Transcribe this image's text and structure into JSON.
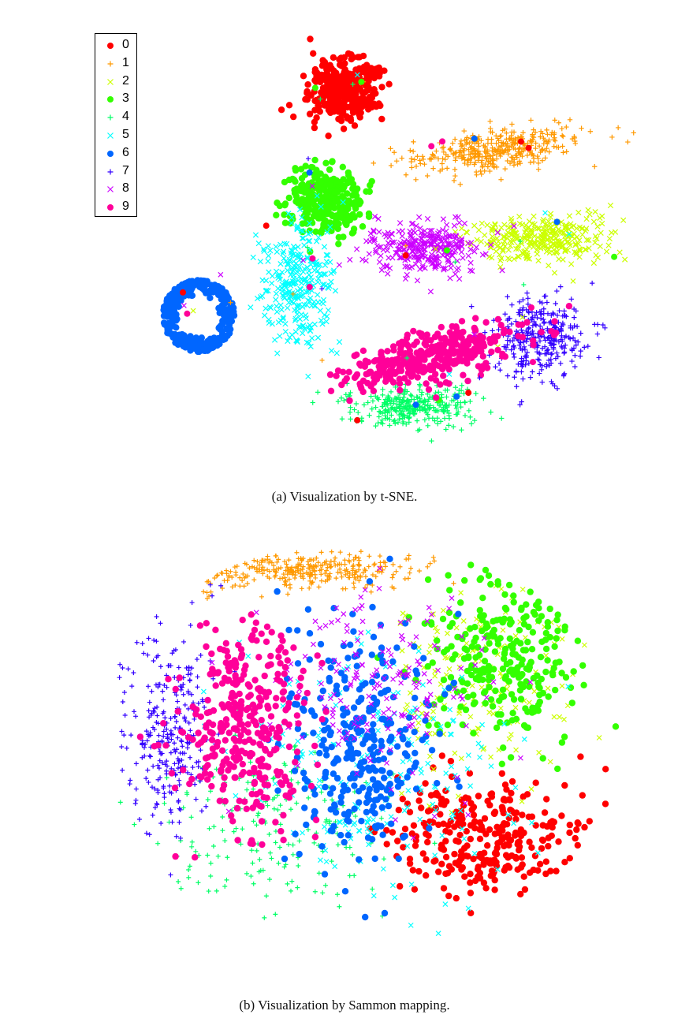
{
  "chart_data": [
    {
      "type": "scatter",
      "caption": "(a) Visualization by t-SNE.",
      "title": "",
      "xlabel": "",
      "ylabel": "",
      "grid": false,
      "axes_visible": false,
      "legend": {
        "placement": "top-left",
        "entries": [
          {
            "label": "0",
            "marker": "dot",
            "color": "#ff0000"
          },
          {
            "label": "1",
            "marker": "plus",
            "color": "#ff9900"
          },
          {
            "label": "2",
            "marker": "cross",
            "color": "#ccff00"
          },
          {
            "label": "3",
            "marker": "dot",
            "color": "#33ff00"
          },
          {
            "label": "4",
            "marker": "plus",
            "color": "#00ff66"
          },
          {
            "label": "5",
            "marker": "cross",
            "color": "#00ffff"
          },
          {
            "label": "6",
            "marker": "dot",
            "color": "#0066ff"
          },
          {
            "label": "7",
            "marker": "plus",
            "color": "#3300ff"
          },
          {
            "label": "8",
            "marker": "cross",
            "color": "#cc00ff"
          },
          {
            "label": "9",
            "marker": "dot",
            "color": "#ff0099"
          }
        ]
      },
      "clusters": [
        {
          "digit": "0",
          "center": [
            0.46,
            0.14
          ],
          "spread": [
            0.07,
            0.08
          ],
          "count": 340,
          "shape": "blob"
        },
        {
          "digit": "1",
          "center": [
            0.73,
            0.28
          ],
          "spread": [
            0.17,
            0.05
          ],
          "count": 360,
          "shape": "elongated",
          "tilt": -0.11
        },
        {
          "digit": "2",
          "center": [
            0.82,
            0.48
          ],
          "spread": [
            0.13,
            0.06
          ],
          "count": 320,
          "shape": "blob"
        },
        {
          "digit": "3",
          "center": [
            0.43,
            0.39
          ],
          "spread": [
            0.08,
            0.08
          ],
          "count": 340,
          "shape": "blob"
        },
        {
          "digit": "4",
          "center": [
            0.58,
            0.85
          ],
          "spread": [
            0.13,
            0.06
          ],
          "count": 320,
          "shape": "blob"
        },
        {
          "digit": "5",
          "center": [
            0.38,
            0.58
          ],
          "spread": [
            0.07,
            0.14
          ],
          "count": 300,
          "shape": "blob"
        },
        {
          "digit": "6",
          "center": [
            0.2,
            0.65
          ],
          "spread": [
            0.08,
            0.1
          ],
          "count": 330,
          "shape": "ring"
        },
        {
          "digit": "7",
          "center": [
            0.81,
            0.7
          ],
          "spread": [
            0.09,
            0.11
          ],
          "count": 310,
          "shape": "blob"
        },
        {
          "digit": "8",
          "center": [
            0.6,
            0.5
          ],
          "spread": [
            0.11,
            0.06
          ],
          "count": 300,
          "shape": "blob"
        },
        {
          "digit": "9",
          "center": [
            0.61,
            0.74
          ],
          "spread": [
            0.18,
            0.06
          ],
          "count": 360,
          "shape": "elongated",
          "tilt": -0.22
        }
      ]
    },
    {
      "type": "scatter",
      "caption": "(b) Visualization by Sammon mapping.",
      "title": "",
      "xlabel": "",
      "ylabel": "",
      "grid": false,
      "axes_visible": false,
      "legend": {
        "placement": "none",
        "entries": []
      },
      "clusters": [
        {
          "digit": "0",
          "center": [
            0.72,
            0.7
          ],
          "spread": [
            0.15,
            0.13
          ],
          "count": 300
        },
        {
          "digit": "1",
          "center": [
            0.4,
            0.08
          ],
          "spread": [
            0.16,
            0.035
          ],
          "count": 300
        },
        {
          "digit": "2",
          "center": [
            0.72,
            0.35
          ],
          "spread": [
            0.15,
            0.2
          ],
          "count": 160
        },
        {
          "digit": "3",
          "center": [
            0.76,
            0.3
          ],
          "spread": [
            0.13,
            0.16
          ],
          "count": 280
        },
        {
          "digit": "4",
          "center": [
            0.33,
            0.68
          ],
          "spread": [
            0.17,
            0.16
          ],
          "count": 200
        },
        {
          "digit": "5",
          "center": [
            0.52,
            0.55
          ],
          "spread": [
            0.2,
            0.22
          ],
          "count": 200
        },
        {
          "digit": "6",
          "center": [
            0.5,
            0.5
          ],
          "spread": [
            0.11,
            0.23
          ],
          "count": 320
        },
        {
          "digit": "7",
          "center": [
            0.14,
            0.46
          ],
          "spread": [
            0.07,
            0.2
          ],
          "count": 280
        },
        {
          "digit": "8",
          "center": [
            0.52,
            0.35
          ],
          "spread": [
            0.18,
            0.18
          ],
          "count": 180
        },
        {
          "digit": "9",
          "center": [
            0.28,
            0.46
          ],
          "spread": [
            0.1,
            0.2
          ],
          "count": 360
        }
      ]
    }
  ]
}
